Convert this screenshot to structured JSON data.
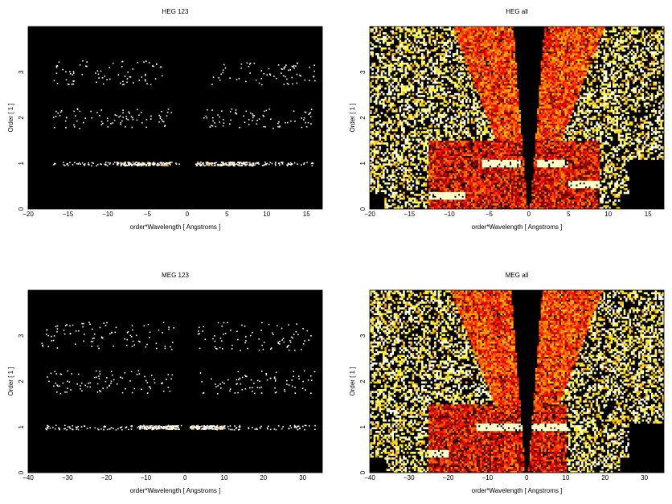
{
  "chart_data": [
    {
      "type": "heatmap",
      "title": "HEG 123",
      "xlabel": "order*Wavelength [ Angstroms ]",
      "ylabel": "Order [ 1 ]",
      "xlim": [
        -20,
        17
      ],
      "ylim": [
        0,
        4
      ],
      "xticks": [
        -20,
        -15,
        -10,
        -5,
        0,
        5,
        10,
        15
      ],
      "yticks": [
        0,
        1,
        2,
        3
      ],
      "background": "#000000",
      "mode": "sparse-orders",
      "bands": [
        {
          "order": 1,
          "spread": 0.04,
          "neg_range": [
            -17,
            -1
          ],
          "pos_range": [
            1,
            16
          ],
          "strong_neg": [
            -9,
            -2
          ],
          "strong_pos": [
            1,
            9
          ]
        },
        {
          "order": 2,
          "spread": 0.1,
          "neg_range": [
            -17,
            -2
          ],
          "pos_range": [
            2,
            16
          ]
        },
        {
          "order": 3,
          "spread": 0.12,
          "neg_range": [
            -17,
            -3
          ],
          "pos_range": [
            3,
            16
          ]
        }
      ]
    },
    {
      "type": "heatmap",
      "title": "HEG all",
      "xlabel": "order*Wavelength [ Angstroms ]",
      "ylabel": "Order [ 1 ]",
      "xlim": [
        -20,
        17
      ],
      "ylim": [
        0,
        4
      ],
      "xticks": [
        -20,
        -15,
        -10,
        -5,
        0,
        5,
        10,
        15
      ],
      "yticks": [
        0,
        1,
        2,
        3
      ],
      "background": "#000000",
      "mode": "dense-fan",
      "fan_center": 0,
      "fan_slope": 0.6,
      "bright_rect": [
        -12.5,
        9,
        0,
        1.5
      ],
      "strong_features": [
        {
          "x": [
            -12.5,
            -8
          ],
          "order": 0.3
        },
        {
          "x": [
            -6,
            -1
          ],
          "order": 1.0
        },
        {
          "x": [
            1,
            5
          ],
          "order": 1.0
        },
        {
          "x": [
            5,
            9
          ],
          "order": 0.55
        }
      ]
    },
    {
      "type": "heatmap",
      "title": "MEG 123",
      "xlabel": "order*Wavelength [ Angstroms ]",
      "ylabel": "Order [ 1 ]",
      "xlim": [
        -40,
        35
      ],
      "ylim": [
        0,
        4
      ],
      "xticks": [
        -40,
        -30,
        -20,
        -10,
        0,
        10,
        20,
        30
      ],
      "yticks": [
        0,
        1,
        2,
        3
      ],
      "background": "#000000",
      "mode": "sparse-orders",
      "bands": [
        {
          "order": 1,
          "spread": 0.05,
          "neg_range": [
            -36,
            -1
          ],
          "pos_range": [
            1,
            33
          ],
          "strong_neg": [
            -12,
            -2
          ],
          "strong_pos": [
            1,
            10
          ]
        },
        {
          "order": 2,
          "spread": 0.12,
          "neg_range": [
            -37,
            -3
          ],
          "pos_range": [
            3,
            33
          ]
        },
        {
          "order": 3,
          "spread": 0.14,
          "neg_range": [
            -37,
            -3
          ],
          "pos_range": [
            3,
            33
          ]
        }
      ]
    },
    {
      "type": "heatmap",
      "title": "MEG all",
      "xlabel": "order*Wavelength [ Angstroms ]",
      "ylabel": "Order [ 1 ]",
      "xlim": [
        -40,
        35
      ],
      "ylim": [
        0,
        4
      ],
      "xticks": [
        -40,
        -30,
        -20,
        -10,
        0,
        10,
        20,
        30
      ],
      "yticks": [
        0,
        1,
        2,
        3
      ],
      "background": "#000000",
      "mode": "dense-fan",
      "fan_center": 0,
      "fan_slope": 0.6,
      "bright_rect": [
        -25,
        10,
        0,
        1.5
      ],
      "strong_features": [
        {
          "x": [
            -25,
            -20
          ],
          "order": 0.4
        },
        {
          "x": [
            -20,
            -10
          ],
          "order": 1.85
        },
        {
          "x": [
            -13,
            -1
          ],
          "order": 1.0
        },
        {
          "x": [
            1,
            10
          ],
          "order": 1.0
        }
      ]
    }
  ]
}
